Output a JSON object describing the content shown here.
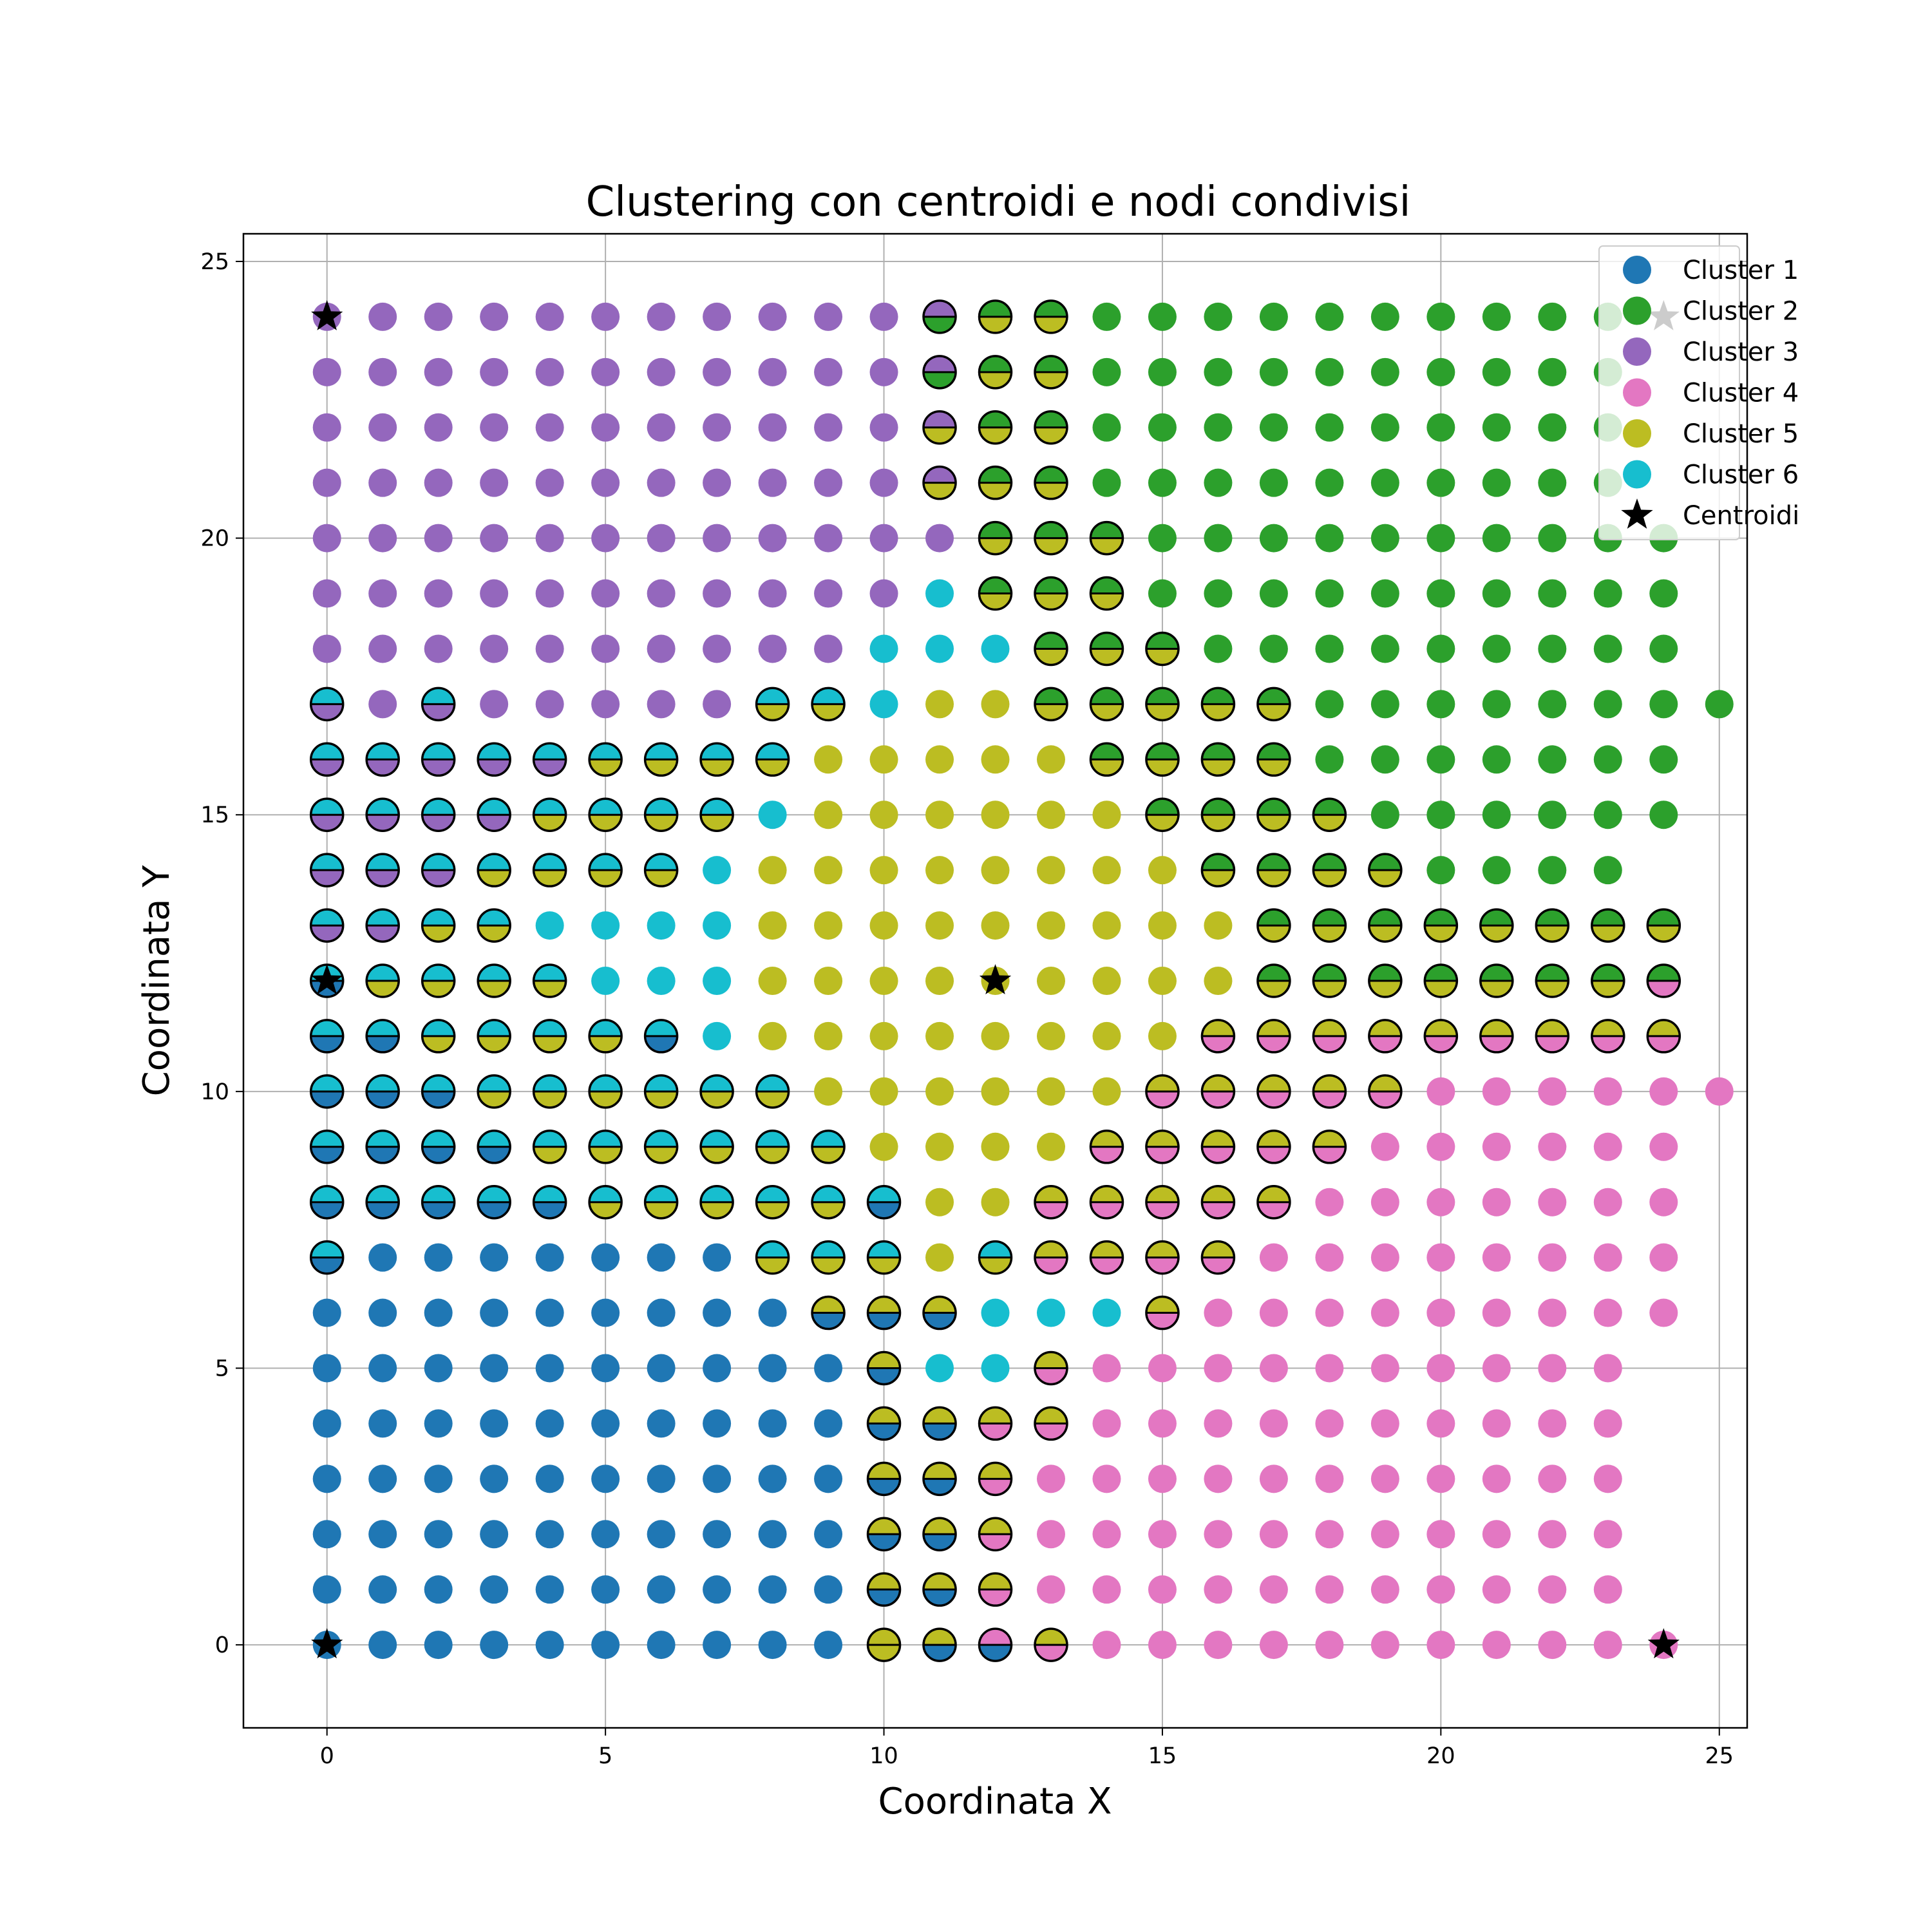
{
  "chart_data": {
    "type": "scatter",
    "title": "Clustering con centroidi e nodi condivisi",
    "xlabel": "Coordinata X",
    "ylabel": "Coordinata Y",
    "xlim": [
      -1.5,
      25.5
    ],
    "ylim": [
      -1.5,
      25.5
    ],
    "xticks": [
      "0",
      "5",
      "10",
      "15",
      "20",
      "25"
    ],
    "yticks": [
      "0",
      "5",
      "10",
      "15",
      "20",
      "25"
    ],
    "grid": true,
    "legend_position": "top-right",
    "colors": {
      "Cluster 1": "#1f77b4",
      "Cluster 2": "#2ca02c",
      "Cluster 3": "#9467bd",
      "Cluster 4": "#e377c2",
      "Cluster 5": "#bcbd22",
      "Cluster 6": "#17becf",
      "Centroidi": "#000000"
    },
    "legend": [
      "Cluster 1",
      "Cluster 2",
      "Cluster 3",
      "Cluster 4",
      "Cluster 5",
      "Cluster 6",
      "Centroidi"
    ],
    "grid_points": {
      "x_min": 0,
      "x_max": 24,
      "y_min": 0,
      "y_max": 24,
      "step": 1
    },
    "node_rows": {
      "24": "33333333333 |32 |25 |25 2222222222",
      "23": "33333333333 |32 |25 |25 2222222222",
      "22": "33333333333 |35 |25 |25 2222222222",
      "21": "33333333333 |35 |25 |25 2222222222",
      "20": "33333333333 3 |25 |25 |25 2222222222",
      "19": "33333333333 6 |25 |25 |25 2222222222",
      "18": "3333333333 6 6 6 |25 |25 |25 222222222",
      "17": "|63 3 |63 3 3 3 3 3 |65 |65 6 5 5 |25 |25 |25 |25 |25 22222222",
      "16": "|63 |63 |63 |63 |63 |65 |65 |65 |65 5 5 5 5 5 |25 |25 |25 |25 2222222",
      "15": "|63 |63 |63 |63 |65 |65 |65 |65 6 5 5 5 5 5 5 |25 |25 |25 |25 222222",
      "14": "|63 |63 |63 |65 |65 |65 |65 6 5 5 5 5 5 5 5 5 |25 |25 |25 |25 2222",
      "13": "|63 |63 |65 |65 6 6 6 6 5 5 5 5 5 5 5 5 5 |25 |25 |25 |25 |25 |25 |25 |25",
      "12": "|61 |65 |65 |65 |65 6 6 6 5 5 5 5 5 5 5 5 5 |25 |25 |25 |25 |25 |25 |25 |24",
      "11": "|61 |61 |65 |65 |65 |65 |61 6 5 5 5 5 5 5 5 5 |54 |54 |54 |54 |54 |54 |54 |54 |54",
      "10": "|61 |61 |61 |65 |65 |65 |65 |65 |65 5 5 5 5 5 5 |54 |54 |54 |54 |54 444444",
      "9": "|61 |61 |61 |61 |65 |65 |65 |65 |65 |65 5 5 5 5 |54 |54 |54 |54 |54 444444",
      "8": "|61 |61 |61 |61 |61 |65 |65 |65 |65 |65 |61 5 5 |54 |54 |54 |54 |54 4444444",
      "7": "|61 1 1 1 1 1 1 1 |65 |65 |65 5 |65 |54 |54 |54 |54 44444444",
      "6": "111111111 |51 |51 |51 6 6 6 |54 444444444",
      "5": "1111111111 |51 6 6 |54 4444444444",
      "4": "1111111111 |51 |51 |54 |54 4444444444",
      "3": "1111111111 |51 |51 |54 44444444444",
      "2": "1111111111 |51 |51 |54 44444444444",
      "1": "1111111111 |51 |51 |54 44444444444",
      "0": "1111111111 |55 |51 |41 |54 44444444444"
    },
    "centroids": [
      {
        "x": 0,
        "y": 24,
        "cluster": "Cluster 3"
      },
      {
        "x": 24,
        "y": 24,
        "cluster": "Cluster 2"
      },
      {
        "x": 0,
        "y": 12,
        "cluster": "Cluster 6"
      },
      {
        "x": 12,
        "y": 12,
        "cluster": "Cluster 5"
      },
      {
        "x": 0,
        "y": 0,
        "cluster": "Cluster 1"
      },
      {
        "x": 24,
        "y": 0,
        "cluster": "Cluster 4"
      }
    ]
  }
}
